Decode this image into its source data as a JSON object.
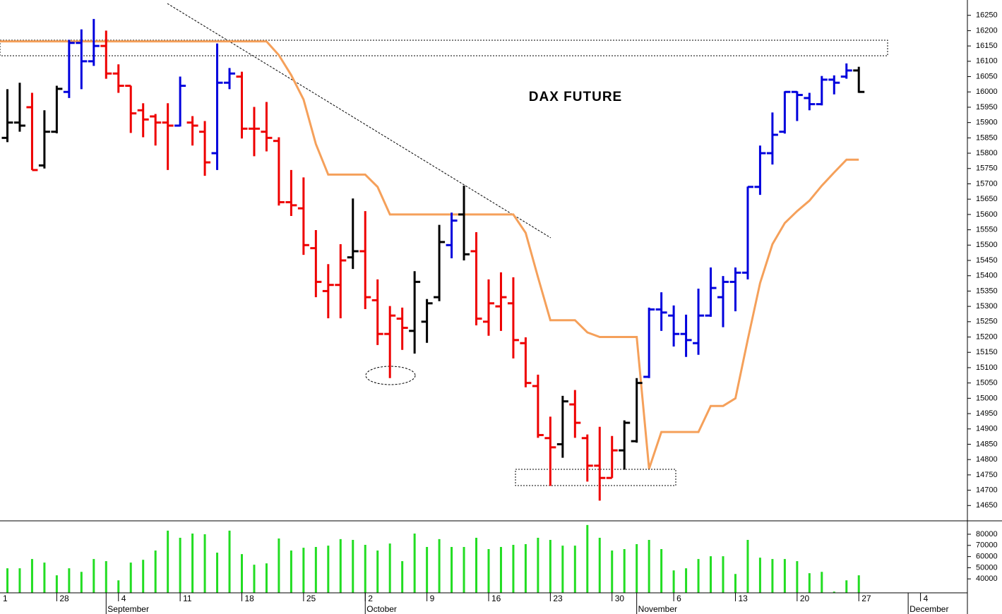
{
  "chart_data": {
    "type": "ohlc",
    "title": "DAX FUTURE",
    "x": [
      1,
      2,
      3,
      4,
      5,
      6,
      7,
      8,
      9,
      10,
      11,
      12,
      13,
      14,
      15,
      16,
      17,
      18,
      19,
      20,
      21,
      22,
      23,
      24,
      25,
      26,
      27,
      28,
      29,
      30,
      31,
      32,
      33,
      34,
      35,
      36,
      37,
      38,
      39,
      40,
      41,
      42,
      43,
      44,
      45,
      46,
      47,
      48,
      49,
      50,
      51,
      52,
      53,
      54,
      55,
      56,
      57,
      58,
      59,
      60,
      61,
      62,
      63,
      64,
      65,
      66,
      67,
      68,
      69,
      70
    ],
    "open": [
      15850,
      15900,
      15950,
      15760,
      15870,
      16000,
      16160,
      16100,
      16150,
      16060,
      16020,
      15940,
      15920,
      15900,
      15890,
      15900,
      15870,
      15800,
      16030,
      16050,
      15880,
      15870,
      15840,
      15640,
      15620,
      15490,
      15350,
      15370,
      15460,
      15480,
      15320,
      15210,
      15260,
      15220,
      15250,
      15330,
      15500,
      15600,
      15480,
      15250,
      15300,
      15310,
      15180,
      15040,
      14870,
      14850,
      14980,
      14870,
      14780,
      14740,
      14830,
      14860,
      15070,
      15290,
      15270,
      15210,
      15180,
      15270,
      15330,
      15380,
      15410,
      15690,
      15800,
      15870,
      16000,
      15980,
      15960,
      16040,
      16050,
      16070
    ],
    "high": [
      16009,
      16030,
      15997,
      15940,
      16020,
      16170,
      16204,
      16238,
      16200,
      16090,
      16020,
      15963,
      15928,
      15963,
      16050,
      15921,
      15905,
      16158,
      16078,
      16066,
      15951,
      15967,
      15852,
      15745,
      15721,
      15549,
      15438,
      15503,
      15652,
      15611,
      15388,
      15301,
      15296,
      15415,
      15324,
      15566,
      15606,
      15694,
      15542,
      15388,
      15411,
      15395,
      15199,
      15077,
      14940,
      15008,
      15027,
      14882,
      14907,
      14877,
      14928,
      15066,
      15296,
      15346,
      15303,
      15273,
      15358,
      15427,
      15399,
      15427,
      15691,
      15825,
      15933,
      16002,
      16002,
      15997,
      16052,
      16054,
      16093,
      16082
    ],
    "low": [
      15836,
      15870,
      15745,
      15750,
      15865,
      15980,
      16009,
      16085,
      16043,
      15997,
      15866,
      15852,
      15825,
      15745,
      15887,
      15825,
      15726,
      15745,
      16009,
      15848,
      15790,
      15806,
      15629,
      15595,
      15468,
      15330,
      15261,
      15261,
      15422,
      15291,
      15174,
      15066,
      15158,
      15146,
      15181,
      15317,
      15457,
      15450,
      15238,
      15204,
      15220,
      15130,
      15036,
      14871,
      14714,
      14806,
      14871,
      14728,
      14666,
      14740,
      14767,
      14855,
      15066,
      15220,
      15169,
      15135,
      15142,
      15266,
      15232,
      15284,
      15388,
      15664,
      15763,
      15864,
      15905,
      15940,
      15956,
      15992,
      16043,
      15997
    ],
    "close": [
      15900,
      15890,
      15745,
      15870,
      16010,
      16160,
      16100,
      16150,
      16060,
      16020,
      15930,
      15910,
      15900,
      15890,
      16020,
      15890,
      15770,
      16030,
      16060,
      15880,
      15880,
      15850,
      15640,
      15630,
      15500,
      15380,
      15370,
      15450,
      15480,
      15330,
      15210,
      15270,
      15230,
      15380,
      15310,
      15510,
      15580,
      15470,
      15260,
      15310,
      15330,
      15190,
      15050,
      14880,
      14840,
      14990,
      14920,
      14780,
      14740,
      14830,
      14920,
      15050,
      15290,
      15280,
      15210,
      15190,
      15270,
      15360,
      15380,
      15410,
      15690,
      15800,
      15860,
      16000,
      15990,
      15960,
      16040,
      16030,
      16070,
      16000
    ],
    "colors": [
      "#000000",
      "#000000",
      "#ee0000",
      "#000000",
      "#000000",
      "#0000dd",
      "#0000dd",
      "#0000dd",
      "#ee0000",
      "#ee0000",
      "#ee0000",
      "#ee0000",
      "#ee0000",
      "#ee0000",
      "#0000dd",
      "#ee0000",
      "#ee0000",
      "#0000dd",
      "#0000dd",
      "#ee0000",
      "#ee0000",
      "#ee0000",
      "#ee0000",
      "#ee0000",
      "#ee0000",
      "#ee0000",
      "#ee0000",
      "#ee0000",
      "#000000",
      "#ee0000",
      "#ee0000",
      "#ee0000",
      "#ee0000",
      "#000000",
      "#000000",
      "#000000",
      "#0000dd",
      "#000000",
      "#ee0000",
      "#ee0000",
      "#ee0000",
      "#ee0000",
      "#ee0000",
      "#ee0000",
      "#ee0000",
      "#000000",
      "#ee0000",
      "#ee0000",
      "#ee0000",
      "#ee0000",
      "#000000",
      "#000000",
      "#0000dd",
      "#0000dd",
      "#0000dd",
      "#0000dd",
      "#0000dd",
      "#0000dd",
      "#0000dd",
      "#0000dd",
      "#0000dd",
      "#0000dd",
      "#0000dd",
      "#0000dd",
      "#0000dd",
      "#0000dd",
      "#0000dd",
      "#0000dd",
      "#0000dd",
      "#000000"
    ],
    "line": {
      "color": "#f5a05a",
      "x": [
        0,
        1,
        2,
        3,
        4,
        5,
        6,
        7,
        8,
        9,
        10,
        11,
        12,
        13,
        14,
        15,
        16,
        17,
        18,
        19,
        20,
        21,
        22,
        23,
        24,
        25,
        26,
        27,
        28,
        29,
        30,
        31,
        32,
        33,
        34,
        35,
        36,
        37,
        38,
        39,
        40,
        41,
        42,
        43,
        44,
        45,
        46,
        47,
        48,
        49,
        50,
        51,
        52,
        53,
        54,
        55,
        56,
        57,
        58,
        59,
        60,
        61,
        62,
        63,
        64,
        65,
        66,
        67,
        68,
        69,
        70
      ],
      "values": [
        16165,
        16165,
        16165,
        16165,
        16165,
        16165,
        16165,
        16165,
        16165,
        16165,
        16165,
        16165,
        16165,
        16165,
        16165,
        16165,
        16165,
        16165,
        16165,
        16165,
        16165,
        16165,
        16165,
        16120,
        16055,
        15975,
        15830,
        15730,
        15730,
        15730,
        15730,
        15690,
        15600,
        15600,
        15600,
        15600,
        15600,
        15600,
        15600,
        15600,
        15600,
        15600,
        15600,
        15540,
        15395,
        15255,
        15255,
        15255,
        15215,
        15200,
        15200,
        15200,
        15200,
        14770,
        14890,
        14890,
        14890,
        14890,
        14975,
        14975,
        15000,
        15192,
        15376,
        15503,
        15572,
        15611,
        15645,
        15694,
        15737,
        15779,
        15779
      ]
    },
    "volume": {
      "color": "#22dd22",
      "values": [
        49500,
        49500,
        57800,
        54600,
        43200,
        49500,
        46300,
        57800,
        55900,
        38700,
        54600,
        57100,
        65400,
        83200,
        76800,
        80600,
        80000,
        63500,
        83200,
        62200,
        52700,
        53900,
        76200,
        65400,
        67900,
        68600,
        69800,
        75600,
        74900,
        70500,
        65400,
        71700,
        55900,
        80600,
        68600,
        75600,
        68600,
        68600,
        76800,
        66700,
        68600,
        70500,
        71100,
        76800,
        74900,
        69800,
        69800,
        88300,
        76800,
        65400,
        66700,
        71100,
        74900,
        66700,
        47600,
        49500,
        57800,
        60300,
        60300,
        44400,
        74900,
        59000,
        57800,
        57800,
        55900,
        45100,
        46300,
        28600,
        38700,
        43200
      ],
      "ylim": [
        27500,
        92000
      ],
      "yticks": [
        40000,
        50000,
        60000,
        70000,
        80000
      ]
    },
    "xlim": [
      0.4,
      78.8
    ],
    "ylim": [
      14600,
      16300
    ],
    "yticks": [
      14650,
      14700,
      14750,
      14800,
      14850,
      14900,
      14950,
      15000,
      15050,
      15100,
      15150,
      15200,
      15250,
      15300,
      15350,
      15400,
      15450,
      15500,
      15550,
      15600,
      15650,
      15700,
      15750,
      15800,
      15850,
      15900,
      15950,
      16000,
      16050,
      16100,
      16150,
      16200,
      16250
    ],
    "xticks": [
      {
        "value": 0,
        "label": "1"
      },
      {
        "value": 5,
        "label": "28"
      },
      {
        "value": 10,
        "label": "4"
      },
      {
        "value": 15,
        "label": "11"
      },
      {
        "value": 20,
        "label": "18"
      },
      {
        "value": 25,
        "label": "25"
      },
      {
        "value": 30,
        "label": "2"
      },
      {
        "value": 35,
        "label": "9"
      },
      {
        "value": 40,
        "label": "16"
      },
      {
        "value": 45,
        "label": "23"
      },
      {
        "value": 50,
        "label": "30"
      },
      {
        "value": 55,
        "label": "6"
      },
      {
        "value": 60,
        "label": "13"
      },
      {
        "value": 65,
        "label": "20"
      },
      {
        "value": 70,
        "label": "27"
      },
      {
        "value": 75,
        "label": "4"
      }
    ],
    "months": [
      {
        "value": 9,
        "label": "September"
      },
      {
        "value": 30,
        "label": "October"
      },
      {
        "value": 52,
        "label": "November"
      },
      {
        "value": 74,
        "label": "December"
      }
    ]
  }
}
